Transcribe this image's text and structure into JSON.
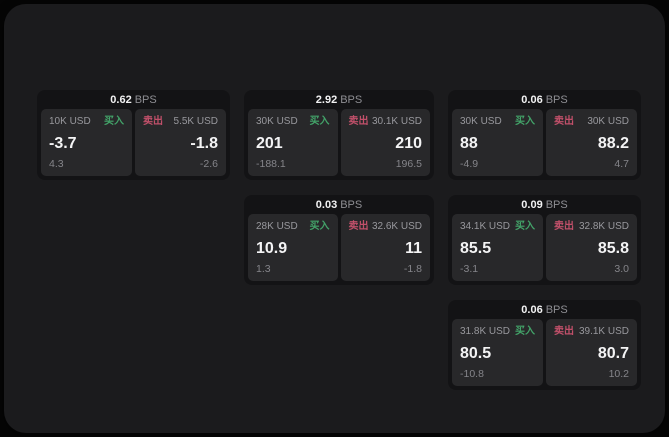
{
  "colors": {
    "buy_green": "#43a369",
    "sell_red": "#c1506a",
    "panel_bg": "#1b1b1d",
    "card_bg": "#131315",
    "subpanel_bg": "#28282a"
  },
  "cards": [
    {
      "bps_value": "0.62",
      "bps_unit": "BPS",
      "buy": {
        "amount": "10K USD",
        "side_label": "买入",
        "value": "-3.7",
        "sub_value": "4.3"
      },
      "sell": {
        "side_label": "卖出",
        "amount": "5.5K USD",
        "value": "-1.8",
        "sub_value": "-2.6"
      }
    },
    {
      "bps_value": "2.92",
      "bps_unit": "BPS",
      "buy": {
        "amount": "30K USD",
        "side_label": "买入",
        "value": "201",
        "sub_value": "-188.1"
      },
      "sell": {
        "side_label": "卖出",
        "amount": "30.1K USD",
        "value": "210",
        "sub_value": "196.5"
      }
    },
    {
      "bps_value": "0.06",
      "bps_unit": "BPS",
      "buy": {
        "amount": "30K USD",
        "side_label": "买入",
        "value": "88",
        "sub_value": "-4.9"
      },
      "sell": {
        "side_label": "卖出",
        "amount": "30K USD",
        "value": "88.2",
        "sub_value": "4.7"
      }
    },
    {
      "bps_value": "0.03",
      "bps_unit": "BPS",
      "buy": {
        "amount": "28K USD",
        "side_label": "买入",
        "value": "10.9",
        "sub_value": "1.3"
      },
      "sell": {
        "side_label": "卖出",
        "amount": "32.6K USD",
        "value": "11",
        "sub_value": "-1.8"
      }
    },
    {
      "bps_value": "0.09",
      "bps_unit": "BPS",
      "buy": {
        "amount": "34.1K USD",
        "side_label": "买入",
        "value": "85.5",
        "sub_value": "-3.1"
      },
      "sell": {
        "side_label": "卖出",
        "amount": "32.8K USD",
        "value": "85.8",
        "sub_value": "3.0"
      }
    },
    {
      "bps_value": "0.06",
      "bps_unit": "BPS",
      "buy": {
        "amount": "31.8K USD",
        "side_label": "买入",
        "value": "80.5",
        "sub_value": "-10.8"
      },
      "sell": {
        "side_label": "卖出",
        "amount": "39.1K USD",
        "value": "80.7",
        "sub_value": "10.2"
      }
    }
  ]
}
